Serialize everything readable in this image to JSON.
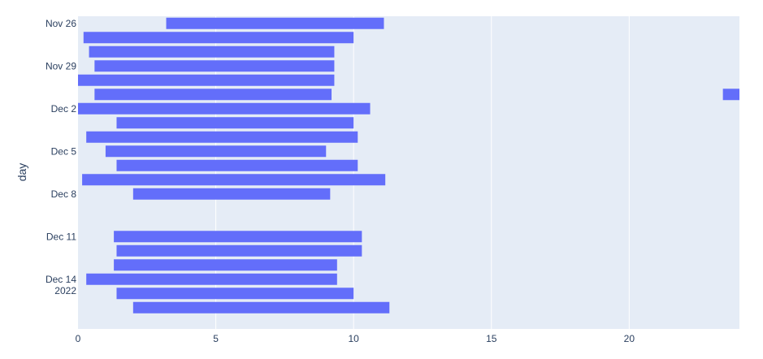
{
  "chart_data": {
    "type": "bar",
    "orientation": "horizontal",
    "title": "",
    "xlabel": "",
    "ylabel": "day",
    "xlim": [
      0,
      24
    ],
    "x_ticks": [
      0,
      5,
      10,
      15,
      20
    ],
    "y_ticks": [
      {
        "date": "2022-11-26",
        "label": "Nov 26"
      },
      {
        "date": "2022-11-29",
        "label": "Nov 29"
      },
      {
        "date": "2022-12-02",
        "label": "Dec 2"
      },
      {
        "date": "2022-12-05",
        "label": "Dec 5"
      },
      {
        "date": "2022-12-08",
        "label": "Dec 8"
      },
      {
        "date": "2022-12-11",
        "label": "Dec 11"
      },
      {
        "date": "2022-12-14",
        "label": "Dec 14",
        "sublabel": "2022"
      }
    ],
    "ylim": [
      "2022-11-25T12:00",
      "2022-12-17T12:00"
    ],
    "grid": true,
    "bar_color": "#636efa",
    "plot_bg": "#e5ecf6",
    "bars": [
      {
        "day": "2022-11-26",
        "start": 3.2,
        "end": 11.1
      },
      {
        "day": "2022-11-27",
        "start": 0.2,
        "end": 10.0
      },
      {
        "day": "2022-11-28",
        "start": 0.4,
        "end": 9.3
      },
      {
        "day": "2022-11-29",
        "start": 0.6,
        "end": 9.3
      },
      {
        "day": "2022-11-30",
        "start": 0.0,
        "end": 9.3
      },
      {
        "day": "2022-12-01",
        "start": 0.6,
        "end": 9.2
      },
      {
        "day": "2022-12-01",
        "start": 23.4,
        "end": 24.0
      },
      {
        "day": "2022-12-02",
        "start": 0.0,
        "end": 10.6
      },
      {
        "day": "2022-12-03",
        "start": 1.4,
        "end": 10.0
      },
      {
        "day": "2022-12-04",
        "start": 0.3,
        "end": 10.15
      },
      {
        "day": "2022-12-05",
        "start": 1.0,
        "end": 9.0
      },
      {
        "day": "2022-12-06",
        "start": 1.4,
        "end": 10.15
      },
      {
        "day": "2022-12-07",
        "start": 0.15,
        "end": 11.15
      },
      {
        "day": "2022-12-08",
        "start": 2.0,
        "end": 9.15
      },
      {
        "day": "2022-12-11",
        "start": 1.3,
        "end": 10.3
      },
      {
        "day": "2022-12-12",
        "start": 1.4,
        "end": 10.3
      },
      {
        "day": "2022-12-13",
        "start": 1.3,
        "end": 9.4
      },
      {
        "day": "2022-12-14",
        "start": 0.3,
        "end": 9.4
      },
      {
        "day": "2022-12-15",
        "start": 1.4,
        "end": 10.0
      },
      {
        "day": "2022-12-16",
        "start": 2.0,
        "end": 11.3
      }
    ]
  }
}
